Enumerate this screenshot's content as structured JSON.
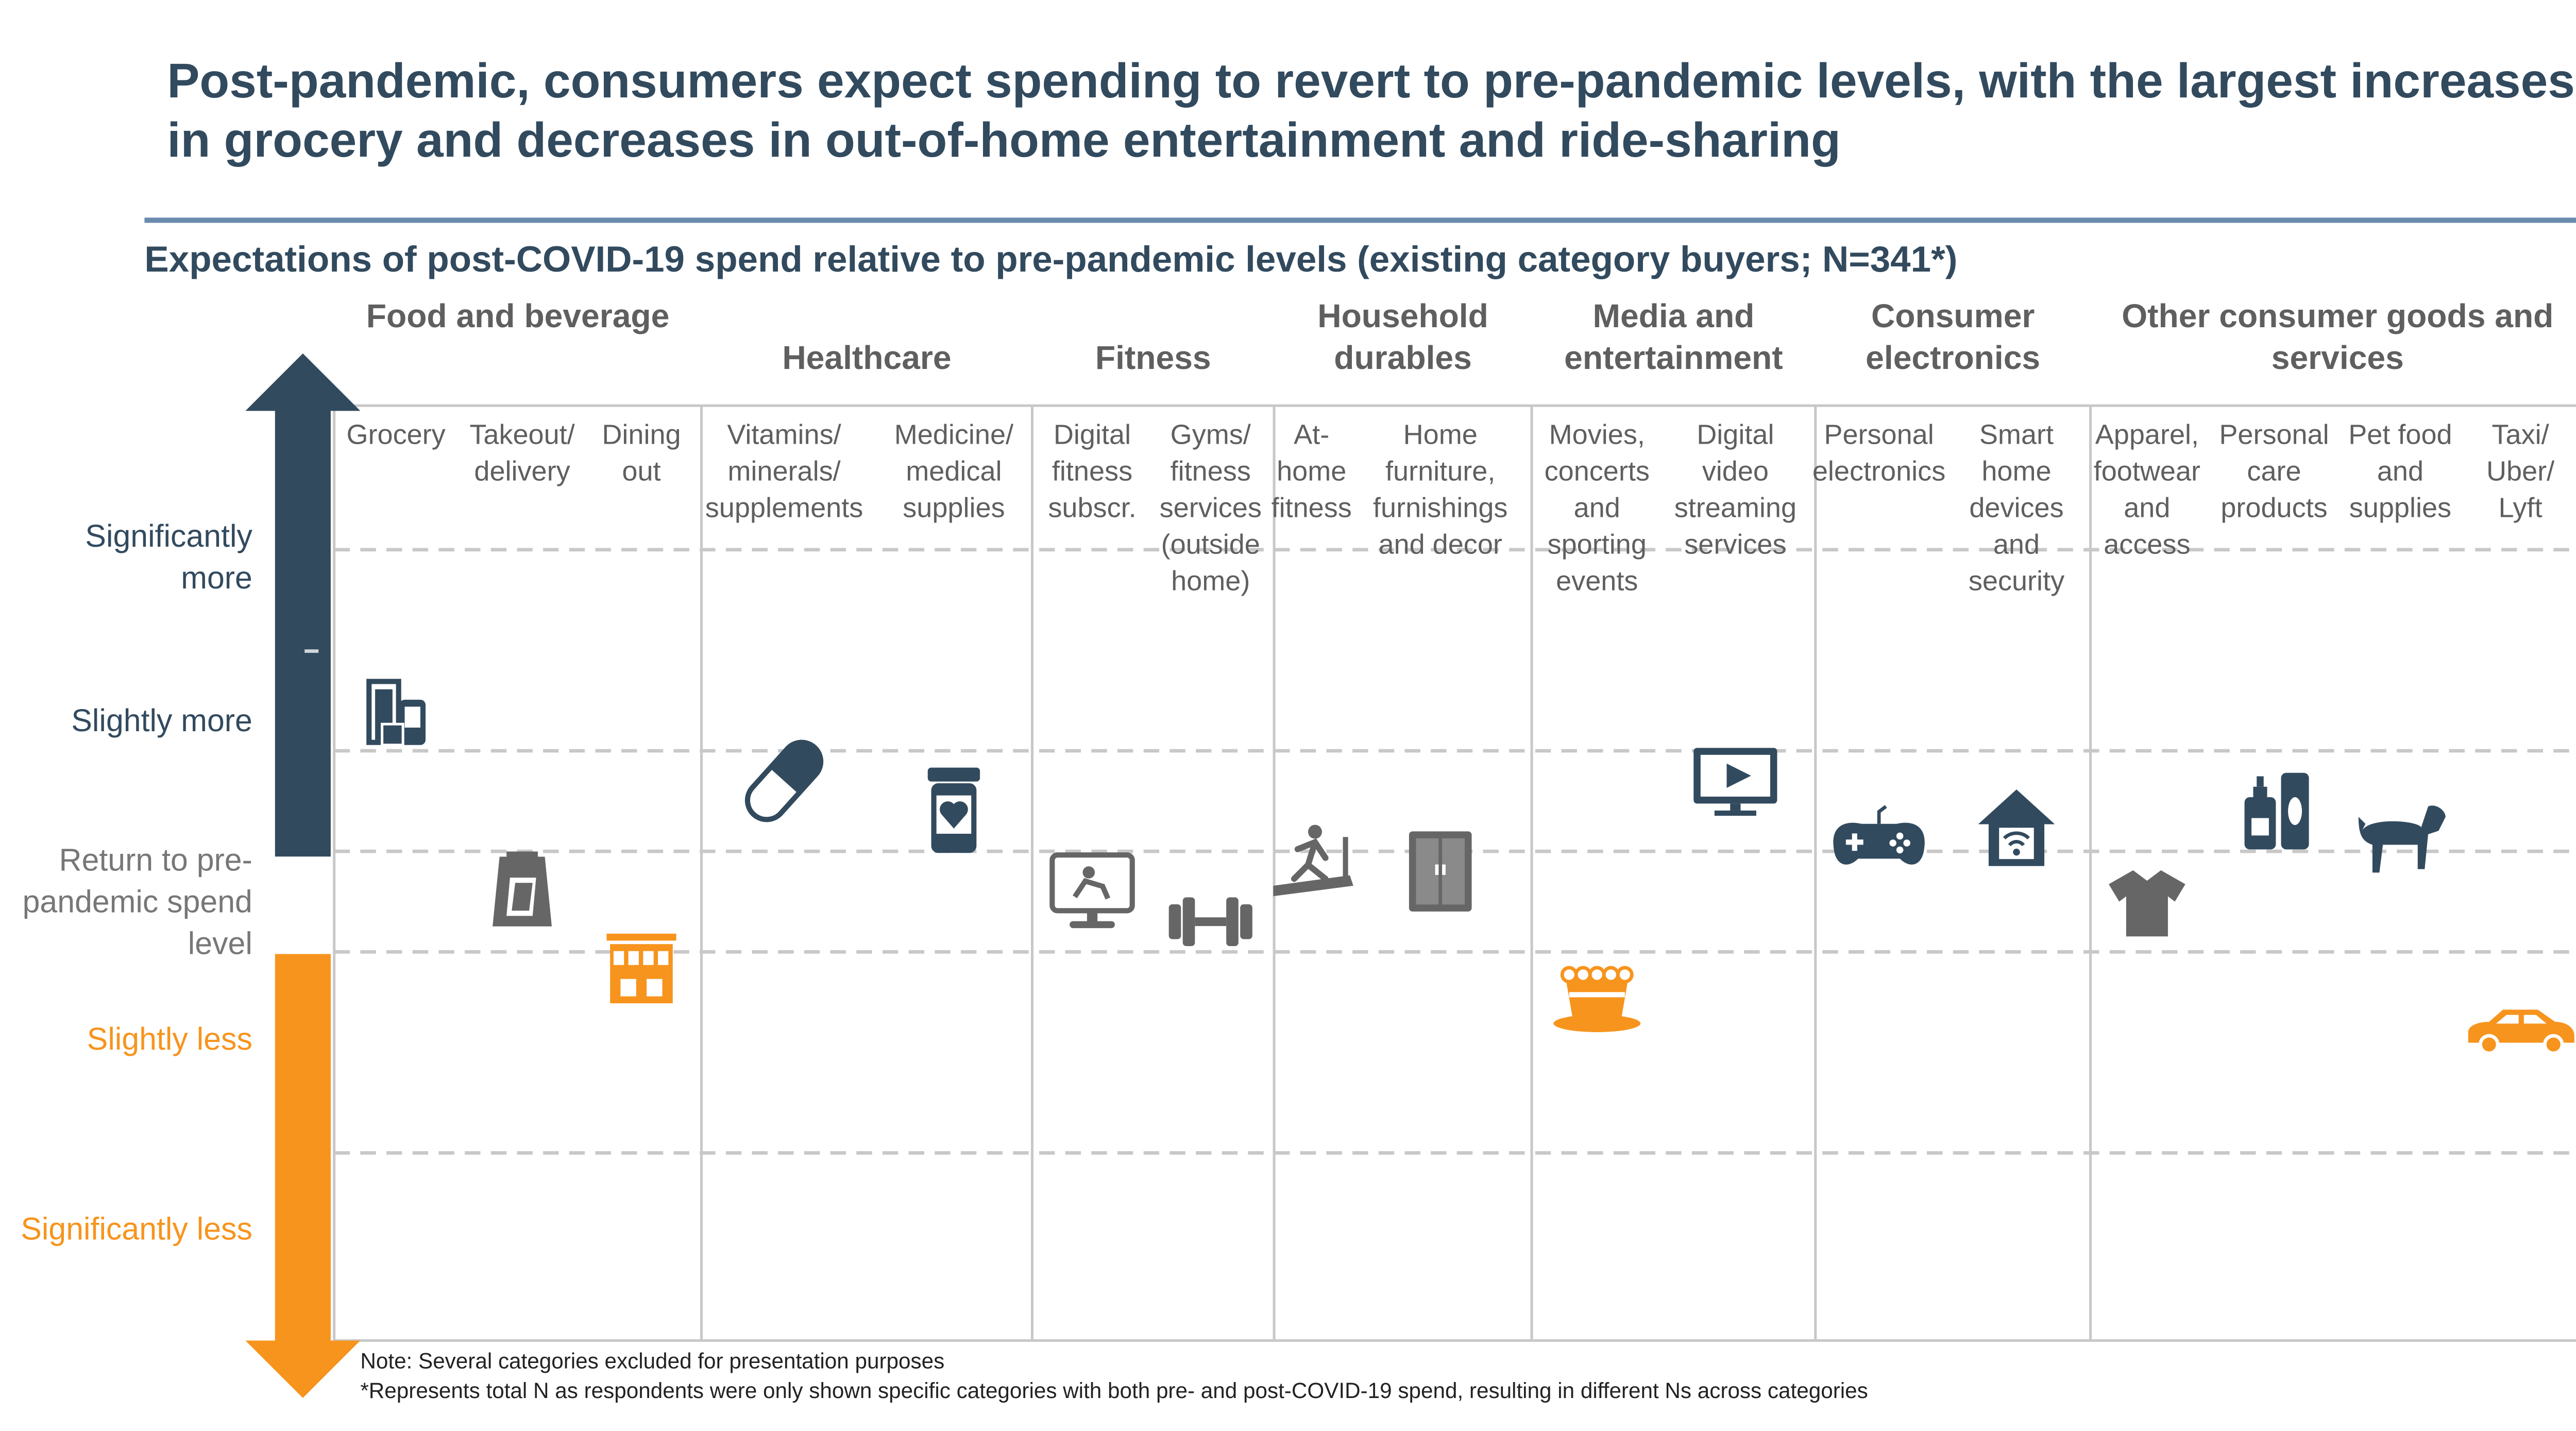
{
  "title": "Post-pandemic, consumers expect spending to revert to pre-pandemic levels, with the largest increases in grocery and decreases in out-of-home entertainment and ride-sharing",
  "subtitle": "Expectations of post-COVID-19 spend relative to pre-pandemic levels (existing category buyers; N=341*)",
  "notes": {
    "note1": "Note: Several categories excluded for presentation purposes",
    "note2": "*Represents total N as respondents were only shown specific categories with both pre- and post-COVID-19 spend, resulting in different Ns across categories"
  },
  "colors": {
    "more": "#324a5e",
    "less": "#f7941d",
    "neutral_text": "#777777",
    "icon_grey": "#666666",
    "grid": "#c8c8c8"
  },
  "chart_data": {
    "type": "scatter",
    "y_scale": "ordinal",
    "y_levels": [
      {
        "value": 2,
        "label": "Significantly more"
      },
      {
        "value": 1,
        "label": "Slightly more"
      },
      {
        "value": 0,
        "label": "Return to pre-pandemic spend level"
      },
      {
        "value": -1,
        "label": "Slightly less"
      },
      {
        "value": -2,
        "label": "Significantly less"
      }
    ],
    "ylim": [
      -2,
      2
    ],
    "grid": "dashed horizontal",
    "groups": [
      {
        "name": "Food and beverage",
        "categories": [
          {
            "label": "Grocery",
            "value": 0.65,
            "icon": "grocery-bag-icon",
            "direction": "more"
          },
          {
            "label": "Takeout/ delivery",
            "value": -0.2,
            "icon": "takeout-bag-icon",
            "direction": "neutral"
          },
          {
            "label": "Dining out",
            "value": -0.6,
            "icon": "storefront-icon",
            "direction": "less"
          }
        ]
      },
      {
        "name": "Healthcare",
        "categories": [
          {
            "label": "Vitamins/ minerals/ supplements",
            "value": 0.35,
            "icon": "pill-capsule-icon",
            "direction": "more"
          },
          {
            "label": "Medicine/ medical supplies",
            "value": 0.2,
            "icon": "medicine-bottle-icon",
            "direction": "more"
          }
        ]
      },
      {
        "name": "Fitness",
        "categories": [
          {
            "label": "Digital fitness subscr.",
            "value": -0.2,
            "icon": "exercise-monitor-icon",
            "direction": "neutral"
          },
          {
            "label": "Gyms/ fitness services (outside home)",
            "value": -0.35,
            "icon": "dumbbell-icon",
            "direction": "neutral"
          }
        ]
      },
      {
        "name": "Household durables",
        "categories": [
          {
            "label": "At-home fitness",
            "value": -0.05,
            "icon": "treadmill-icon",
            "direction": "neutral"
          },
          {
            "label": "Home furniture, furnishings and decor",
            "value": -0.1,
            "icon": "wardrobe-icon",
            "direction": "neutral"
          }
        ]
      },
      {
        "name": "Media and entertainment",
        "categories": [
          {
            "label": "Movies, concerts and sporting events",
            "value": -0.7,
            "icon": "popcorn-icon",
            "direction": "less"
          },
          {
            "label": "Digital video streaming services",
            "value": 0.35,
            "icon": "video-screen-icon",
            "direction": "more"
          }
        ]
      },
      {
        "name": "Consumer electronics",
        "categories": [
          {
            "label": "Personal electronics",
            "value": 0.05,
            "icon": "gamepad-icon",
            "direction": "more"
          },
          {
            "label": "Smart home devices and security",
            "value": 0.1,
            "icon": "smart-home-icon",
            "direction": "more"
          }
        ]
      },
      {
        "name": "Other consumer goods and services",
        "categories": [
          {
            "label": "Apparel, footwear and access",
            "value": -0.25,
            "icon": "tshirt-icon",
            "direction": "neutral"
          },
          {
            "label": "Personal care products",
            "value": 0.2,
            "icon": "lotion-bottles-icon",
            "direction": "more"
          },
          {
            "label": "Pet food and supplies",
            "value": 0.05,
            "icon": "dog-icon",
            "direction": "more"
          },
          {
            "label": "Taxi/ Uber/ Lyft",
            "value": -0.9,
            "icon": "car-icon",
            "direction": "less"
          }
        ]
      }
    ]
  }
}
